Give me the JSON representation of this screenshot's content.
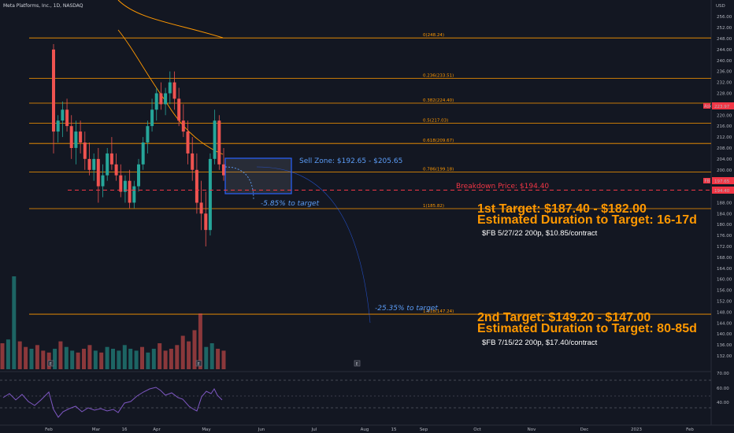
{
  "header": {
    "title": "Meta Platforms, Inc., 1D, NASDAQ",
    "currency": "USD"
  },
  "colors": {
    "bg": "#131722",
    "fib": "#ff9800",
    "up": "#26a69a",
    "down": "#ef5350",
    "blue": "#2962ff",
    "red": "#f23645",
    "ma": "#ff9800"
  },
  "chart_data": {
    "type": "candlestick",
    "title": "Meta Platforms, Inc., 1D, NASDAQ",
    "x_ticks": [
      "Feb",
      "Mar",
      "16",
      "Apr",
      "May",
      "Jun",
      "Jul",
      "Aug",
      "15",
      "Sep",
      "Oct",
      "Nov",
      "Dec",
      "2023",
      "Feb"
    ],
    "y_ticks": [
      132,
      136,
      140,
      144,
      148,
      152,
      156,
      160,
      164,
      168,
      172,
      176,
      180,
      184,
      188,
      192,
      196,
      200,
      204,
      208,
      212,
      216,
      220,
      224,
      228,
      232,
      236,
      240,
      244,
      248,
      252,
      256
    ],
    "ylim": [
      130,
      260
    ],
    "price_labels": {
      "ask": "223.97",
      "last": "197.65",
      "breakdown": "194.40"
    },
    "fib_levels": [
      {
        "label": "0(248.24)",
        "value": 248.24
      },
      {
        "label": "0.236(233.51)",
        "value": 233.51
      },
      {
        "label": "0.382(224.40)",
        "value": 224.4
      },
      {
        "label": "0.5(217.03)",
        "value": 217.03
      },
      {
        "label": "0.618(209.67)",
        "value": 209.67
      },
      {
        "label": "0.786(199.18)",
        "value": 199.18
      },
      {
        "label": "1(185.82)",
        "value": 185.82
      },
      {
        "label": "1.618(147.24)",
        "value": 147.24
      }
    ],
    "candles": [
      [
        244,
        246,
        206,
        214
      ],
      [
        214,
        220,
        210,
        218
      ],
      [
        218,
        225,
        212,
        222
      ],
      [
        222,
        226,
        214,
        216
      ],
      [
        216,
        220,
        204,
        208
      ],
      [
        208,
        218,
        202,
        214
      ],
      [
        214,
        218,
        206,
        210
      ],
      [
        210,
        214,
        200,
        204
      ],
      [
        204,
        210,
        198,
        200
      ],
      [
        200,
        206,
        196,
        204
      ],
      [
        204,
        208,
        188,
        194
      ],
      [
        194,
        202,
        190,
        198
      ],
      [
        198,
        208,
        196,
        206
      ],
      [
        206,
        212,
        200,
        202
      ],
      [
        202,
        206,
        196,
        198
      ],
      [
        198,
        202,
        190,
        192
      ],
      [
        192,
        198,
        188,
        196
      ],
      [
        196,
        200,
        186,
        188
      ],
      [
        188,
        196,
        186,
        194
      ],
      [
        194,
        204,
        192,
        202
      ],
      [
        202,
        212,
        200,
        210
      ],
      [
        210,
        218,
        206,
        216
      ],
      [
        216,
        226,
        214,
        222
      ],
      [
        222,
        230,
        218,
        228
      ],
      [
        228,
        232,
        222,
        224
      ],
      [
        224,
        230,
        220,
        228
      ],
      [
        228,
        236,
        224,
        232
      ],
      [
        232,
        236,
        222,
        226
      ],
      [
        226,
        230,
        216,
        218
      ],
      [
        218,
        224,
        212,
        214
      ],
      [
        214,
        218,
        202,
        206
      ],
      [
        206,
        212,
        196,
        200
      ],
      [
        200,
        206,
        184,
        188
      ],
      [
        188,
        196,
        178,
        184
      ],
      [
        184,
        192,
        172,
        178
      ],
      [
        178,
        206,
        176,
        204
      ],
      [
        204,
        222,
        202,
        218
      ],
      [
        218,
        220,
        200,
        202
      ],
      [
        202,
        208,
        196,
        198
      ]
    ],
    "volume": [
      28,
      32,
      100,
      30,
      24,
      22,
      26,
      20,
      18,
      22,
      30,
      24,
      20,
      18,
      22,
      26,
      20,
      18,
      24,
      22,
      20,
      26,
      22,
      20,
      24,
      18,
      22,
      28,
      20,
      22,
      26,
      36,
      30,
      42,
      60,
      24,
      28,
      22,
      20
    ],
    "rsi_ticks": [
      "70.00",
      "60.00",
      "40.00"
    ]
  },
  "annotations": {
    "sell_zone": "Sell Zone: $192.65 - $205.65",
    "breakdown": "Breakdown Price: $194.40",
    "pct1": "-5.85% to target",
    "pct2": "-25.35% to target",
    "t1_title": "1st Target: $187.40 - $182.00",
    "t1_duration": "Estimated Duration to Target: 16-17d",
    "t1_option": "$FB 5/27/22 200p, $10.85/contract",
    "t2_title": "2nd Target: $149.20 - $147.00",
    "t2_duration": "Estimated Duration to Target: 80-85d",
    "t2_option": "$FB 7/15/22 200p, $17.40/contract"
  }
}
